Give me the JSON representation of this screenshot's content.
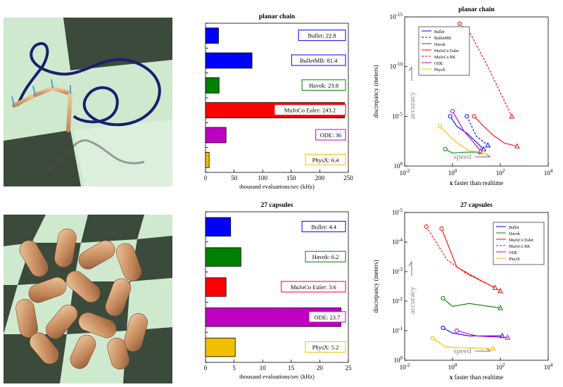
{
  "images": {
    "top_left": "planar-chain-simulation-render",
    "bottom_left": "capsules-simulation-render"
  },
  "colors": {
    "Bullet": "#0000ff",
    "BulletMB": "#0000ff",
    "Havok": "#008000",
    "MuJoCo Euler": "#ff0000",
    "MuJoCo RK": "#ff0000",
    "ODE": "#c000c0",
    "PhysX": "#f0c000"
  },
  "chart_data": [
    {
      "id": "bar1",
      "type": "bar",
      "orientation": "horizontal",
      "title": "planar chain",
      "xlabel": "thousand evaluations/sec (kHz)",
      "xlim": [
        0,
        250
      ],
      "xticks": [
        "0",
        "50",
        "100",
        "150",
        "200",
        "250"
      ],
      "bars": [
        {
          "name": "Bullet",
          "value": 22.8,
          "label": "Bullet: 22.8",
          "color": "#0000ff"
        },
        {
          "name": "BulletMB",
          "value": 81.4,
          "label": "BulletMB: 81.4",
          "color": "#0000ff"
        },
        {
          "name": "Havok",
          "value": 23.8,
          "label": "Havok: 23.8",
          "color": "#008000"
        },
        {
          "name": "MuJoCo Euler",
          "value": 243.2,
          "label": "MuJoCo Euler: 243.2",
          "color": "#ff0000"
        },
        {
          "name": "ODE",
          "value": 36,
          "label": "ODE: 36",
          "color": "#c000c0"
        },
        {
          "name": "PhysX",
          "value": 6.4,
          "label": "PhysX: 6.4",
          "color": "#f0c000"
        }
      ]
    },
    {
      "id": "bar2",
      "type": "bar",
      "orientation": "horizontal",
      "title": "27 capsules",
      "xlabel": "thousand evaluations/sec (kHz)",
      "xlim": [
        0,
        25
      ],
      "xticks": [
        "0",
        "5",
        "10",
        "15",
        "20",
        "25"
      ],
      "bars": [
        {
          "name": "Bullet",
          "value": 4.4,
          "label": "Bullet: 4.4",
          "color": "#0000ff"
        },
        {
          "name": "Havok",
          "value": 6.2,
          "label": "Havok: 6.2",
          "color": "#008000"
        },
        {
          "name": "MuJoCo Euler",
          "value": 3.6,
          "label": "MuJoCo Euler: 3.6",
          "color": "#ff0000"
        },
        {
          "name": "ODE",
          "value": 23.7,
          "label": "ODE: 23.7",
          "color": "#c000c0"
        },
        {
          "name": "PhysX",
          "value": 5.2,
          "label": "PhysX: 5.2",
          "color": "#f0c000"
        }
      ]
    },
    {
      "id": "line1",
      "type": "line",
      "title": "planar chain",
      "xlabel_mark": "x",
      "xlabel": "faster than realtime",
      "ylabel": "discrepancy (meters)",
      "xscale": "log",
      "yscale": "log-inverted",
      "xticks": [
        {
          "label": "10",
          "exp": "-2"
        },
        {
          "label": "10",
          "exp": "0"
        },
        {
          "label": "10",
          "exp": "2"
        },
        {
          "label": "10",
          "exp": "4"
        }
      ],
      "yticks": [
        {
          "label": "10",
          "exp": "-15"
        },
        {
          "label": "10",
          "exp": "-10"
        },
        {
          "label": "10",
          "exp": "-5"
        },
        {
          "label": "10",
          "exp": "0"
        }
      ],
      "annotations": {
        "accuracy": "accuracy",
        "speed": "speed"
      },
      "legend_position": "top-left",
      "series": [
        {
          "name": "Bullet",
          "dashed": false,
          "marker": "circle",
          "color": "#0000ff",
          "x": [
            0.8,
            1.5,
            4,
            20
          ],
          "y": [
            1e-05,
            0.0001,
            0.0005,
            0.02
          ]
        },
        {
          "name": "BulletMB",
          "dashed": true,
          "marker": "triangle",
          "color": "#0000ff",
          "x": [
            4,
            10,
            30
          ],
          "y": [
            1e-05,
            0.001,
            0.008
          ]
        },
        {
          "name": "Havok",
          "dashed": false,
          "marker": "circle",
          "color": "#008000",
          "x": [
            0.5,
            1,
            3,
            15
          ],
          "y": [
            0.02,
            0.05,
            0.04,
            0.04
          ]
        },
        {
          "name": "MuJoCo Euler",
          "dashed": false,
          "marker": "triangle",
          "color": "#ff0000",
          "x": [
            8,
            20,
            50,
            150,
            500
          ],
          "y": [
            1e-05,
            0.0001,
            0.0008,
            0.005,
            0.01
          ]
        },
        {
          "name": "MuJoCo RK",
          "dashed": true,
          "marker": "triangle",
          "color": "#ff0000",
          "x": [
            2,
            5,
            30,
            300
          ],
          "y": [
            5e-15,
            3e-14,
            1e-10,
            1e-05
          ]
        },
        {
          "name": "ODE",
          "dashed": false,
          "marker": "circle",
          "color": "#c000c0",
          "x": [
            1,
            3,
            15
          ],
          "y": [
            3e-06,
            0.0003,
            0.03
          ]
        },
        {
          "name": "PhysX",
          "dashed": false,
          "marker": "triangle",
          "color": "#f0c000",
          "x": [
            0.3,
            1,
            5,
            20
          ],
          "y": [
            0.0001,
            0.002,
            0.03,
            0.04
          ]
        }
      ]
    },
    {
      "id": "line2",
      "type": "line",
      "title": "27 capsules",
      "xlabel_mark": "x",
      "xlabel": "faster than realtime",
      "ylabel": "discrepancy (meters)",
      "xscale": "log",
      "yscale": "log-inverted",
      "xticks": [
        {
          "label": "10",
          "exp": "-2"
        },
        {
          "label": "10",
          "exp": "0"
        },
        {
          "label": "10",
          "exp": "2"
        },
        {
          "label": "10",
          "exp": "4"
        }
      ],
      "yticks": [
        {
          "label": "10",
          "exp": "-5"
        },
        {
          "label": "10",
          "exp": "-4"
        },
        {
          "label": "10",
          "exp": "-3"
        },
        {
          "label": "10",
          "exp": "-2"
        },
        {
          "label": "10",
          "exp": "-1"
        },
        {
          "label": "10",
          "exp": "0"
        }
      ],
      "annotations": {
        "accuracy": "accuracy",
        "speed": "speed"
      },
      "legend_position": "top-right",
      "series": [
        {
          "name": "Bullet",
          "dashed": false,
          "marker": "circle",
          "color": "#0000ff",
          "x": [
            0.4,
            1,
            5,
            120
          ],
          "y": [
            0.08,
            0.12,
            0.15,
            0.15
          ]
        },
        {
          "name": "Havok",
          "dashed": false,
          "marker": "circle",
          "color": "#008000",
          "x": [
            0.4,
            1,
            5,
            100
          ],
          "y": [
            0.008,
            0.015,
            0.012,
            0.017
          ]
        },
        {
          "name": "MuJoCo Euler",
          "dashed": false,
          "marker": "circle",
          "color": "#ff0000",
          "x": [
            0.35,
            1.5,
            8,
            100
          ],
          "y": [
            3.5e-05,
            0.0007,
            0.0015,
            0.0045
          ]
        },
        {
          "name": "MuJoCo RK",
          "dashed": true,
          "marker": "circle",
          "color": "#ff0000",
          "x": [
            0.08,
            0.6,
            4,
            60
          ],
          "y": [
            3e-05,
            0.0004,
            0.0012,
            0.0035
          ]
        },
        {
          "name": "ODE",
          "dashed": false,
          "marker": "circle",
          "color": "#c000c0",
          "x": [
            1.5,
            10,
            200
          ],
          "y": [
            0.1,
            0.15,
            0.17
          ]
        },
        {
          "name": "PhysX",
          "dashed": false,
          "marker": "triangle",
          "color": "#f0c000",
          "x": [
            0.15,
            0.5,
            3,
            50
          ],
          "y": [
            0.18,
            0.35,
            0.38,
            0.4
          ]
        }
      ]
    }
  ]
}
